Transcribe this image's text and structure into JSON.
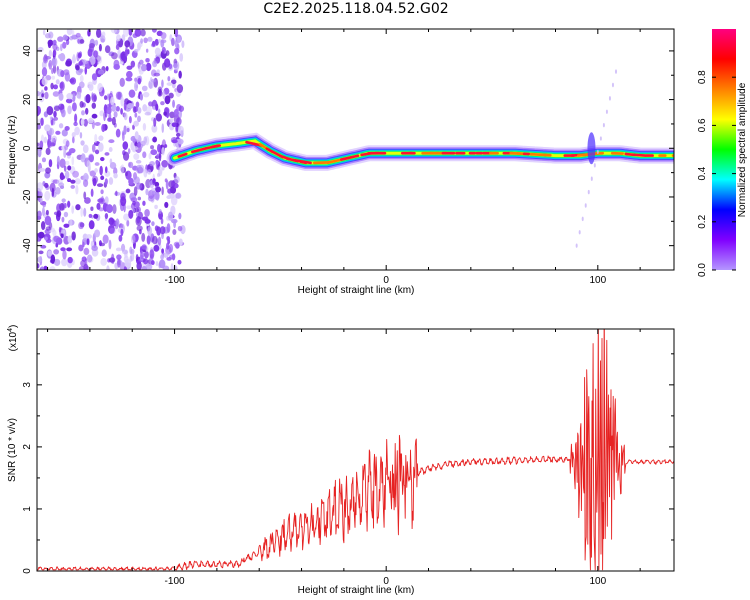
{
  "title": "C2E2.2025.118.04.52.G02",
  "colors": {
    "snr_line": "#e62222",
    "colorbar": [
      "#b496ff",
      "#8000ff",
      "#0000ff",
      "#00ffff",
      "#00ff00",
      "#ffff00",
      "#ff8000",
      "#ff0000",
      "#ff0080"
    ]
  },
  "chart_data": [
    {
      "type": "heatmap",
      "xlabel": "Height of straight line (km)",
      "ylabel": "Frequency (Hz)",
      "xlim": [
        -165,
        136
      ],
      "ylim": [
        -50,
        49
      ],
      "x_ticks": [
        -100,
        0,
        100
      ],
      "y_ticks": [
        -40,
        -20,
        0,
        20,
        40
      ],
      "colorbar": {
        "label": "Normalized spectral amplitude",
        "range": [
          0,
          1
        ],
        "ticks": [
          "0.0",
          "0.2",
          "0.4",
          "0.6",
          "0.8"
        ]
      },
      "ridge": {
        "description_points_km_hz": [
          [
            -100,
            -4
          ],
          [
            -90,
            -1
          ],
          [
            -80,
            1
          ],
          [
            -70,
            2
          ],
          [
            -62,
            3
          ],
          [
            -55,
            -1
          ],
          [
            -48,
            -4
          ],
          [
            -38,
            -6
          ],
          [
            -28,
            -6
          ],
          [
            -18,
            -4
          ],
          [
            -8,
            -2
          ],
          [
            0,
            -2
          ],
          [
            10,
            -2
          ],
          [
            30,
            -2
          ],
          [
            60,
            -2
          ],
          [
            80,
            -3
          ],
          [
            92,
            -3
          ],
          [
            100,
            -2
          ],
          [
            110,
            -2
          ],
          [
            120,
            -3
          ],
          [
            136,
            -3
          ]
        ]
      },
      "noise_region_km": [
        -165,
        -100
      ]
    },
    {
      "type": "line",
      "xlabel": "Height of straight line (km)",
      "ylabel": "SNR (10 * v/v)",
      "y_scale_label": "(x10",
      "y_scale_exp": "4",
      "xlim": [
        -165,
        136
      ],
      "ylim": [
        0,
        3.9
      ],
      "x_ticks": [
        -100,
        0,
        100
      ],
      "y_ticks": [
        0,
        1,
        2,
        3
      ],
      "envelope_km_snr": [
        [
          -165,
          0.03
        ],
        [
          -110,
          0.03
        ],
        [
          -100,
          0.04
        ],
        [
          -90,
          0.12
        ],
        [
          -80,
          0.1
        ],
        [
          -70,
          0.12
        ],
        [
          -60,
          0.3
        ],
        [
          -50,
          0.55
        ],
        [
          -40,
          0.7
        ],
        [
          -30,
          0.85
        ],
        [
          -20,
          1.0
        ],
        [
          -10,
          1.25
        ],
        [
          -2,
          1.38
        ],
        [
          5,
          1.45
        ],
        [
          10,
          1.45
        ],
        [
          15,
          1.58
        ],
        [
          20,
          1.65
        ],
        [
          30,
          1.72
        ],
        [
          40,
          1.76
        ],
        [
          60,
          1.78
        ],
        [
          80,
          1.8
        ],
        [
          90,
          1.8
        ],
        [
          100,
          1.8
        ],
        [
          105,
          1.8
        ],
        [
          110,
          1.76
        ],
        [
          120,
          1.76
        ],
        [
          136,
          1.76
        ]
      ],
      "features": [
        {
          "x": 6,
          "peak": 2.2
        },
        {
          "x": 100,
          "peak": 3.9
        }
      ]
    }
  ]
}
